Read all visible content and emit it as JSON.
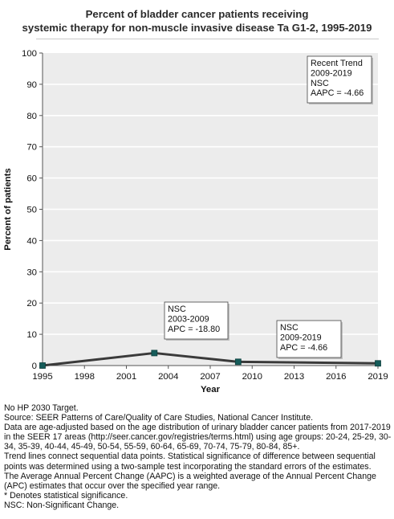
{
  "title_lines": [
    "Percent of bladder cancer patients receiving",
    "systemic therapy for non-muscle invasive disease Ta G1-2, 1995-2019"
  ],
  "chart_data": {
    "type": "line",
    "title": "Percent of bladder cancer patients receiving systemic therapy for non-muscle invasive disease Ta G1-2, 1995-2019",
    "xlabel": "Year",
    "ylabel": "Percent of patients",
    "xlim": [
      1995,
      2019
    ],
    "ylim": [
      0,
      100
    ],
    "xticks": [
      1995,
      1998,
      2001,
      2004,
      2007,
      2010,
      2013,
      2016,
      2019
    ],
    "yticks": [
      0,
      10,
      20,
      30,
      40,
      50,
      60,
      70,
      80,
      90,
      100
    ],
    "grid": true,
    "colors": {
      "line": "#3a3a3a",
      "marker": "#155c5a",
      "plot_bg": "#ececec",
      "grid": "#ffffff"
    },
    "series": [
      {
        "points": [
          {
            "x": 1995,
            "y": 0.0
          },
          {
            "x": 2003,
            "y": 4.0
          },
          {
            "x": 2009,
            "y": 1.2
          },
          {
            "x": 2019,
            "y": 0.7
          }
        ]
      }
    ],
    "annotations": [
      {
        "position": "top-right",
        "lines": [
          "Recent Trend",
          "2009-2019",
          "NSC",
          "AAPC = -4.66"
        ]
      },
      {
        "position": "above 2003-2009 segment",
        "lines": [
          "NSC",
          "2003-2009",
          "APC = -18.80"
        ]
      },
      {
        "position": "above 2009-2019 segment",
        "lines": [
          "NSC",
          "2009-2019",
          "APC = -4.66"
        ]
      }
    ]
  },
  "notes": [
    "No HP 2030 Target.",
    "Source: SEER Patterns of Care/Quality of Care Studies, National Cancer Institute.",
    "Data are age-adjusted based on the age distribution of urinary bladder cancer patients from 2017-2019 in the SEER 17 areas (http://seer.cancer.gov/registries/terms.html) using age groups: 20-24, 25-29, 30-34, 35-39, 40-44, 45-49, 50-54, 55-59, 60-64, 65-69, 70-74, 75-79, 80-84, 85+.",
    "Trend lines connect sequential data points. Statistical significance of difference between sequential points was determined using a two-sample test incorporating the standard errors of the estimates.",
    "The Average Annual Percent Change (AAPC) is a weighted average of the Annual Percent Change (APC) estimates that occur over the specified year range.",
    "* Denotes statistical significance.",
    "NSC: Non-Significant Change."
  ]
}
